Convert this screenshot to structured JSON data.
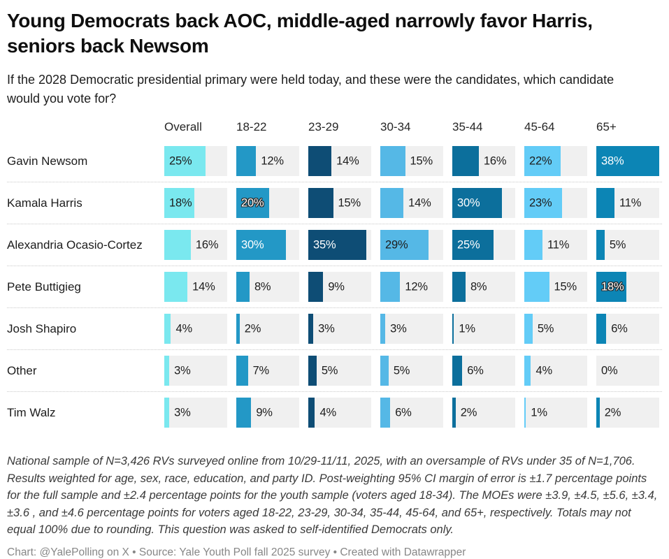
{
  "header": {
    "title": "Young Democrats back AOC, middle-aged narrowly favor Harris, seniors back Newsom",
    "subtitle": "If the 2028 Democratic presidential primary were held today, and these were the candidates, which candidate would you vote for?"
  },
  "chart_data": {
    "type": "bar",
    "title": "Young Democrats back AOC, middle-aged narrowly favor Harris, seniors back Newsom",
    "subtitle": "If the 2028 Democratic presidential primary were held today, and these were the candidates, which candidate would you vote for?",
    "value_suffix": "%",
    "scale_max": 38,
    "grid": false,
    "legend_position": "none",
    "track_color": "#f0f0f0",
    "categories": [
      "Overall",
      "18-22",
      "23-29",
      "30-34",
      "35-44",
      "45-64",
      "65+"
    ],
    "columns": [
      {
        "label": "Overall",
        "color": "#7ae8ef",
        "dark": false
      },
      {
        "label": "18-22",
        "color": "#2398c6",
        "dark": true
      },
      {
        "label": "23-29",
        "color": "#0e4d75",
        "dark": true
      },
      {
        "label": "30-34",
        "color": "#55b8e6",
        "dark": false
      },
      {
        "label": "35-44",
        "color": "#0c6f9c",
        "dark": true
      },
      {
        "label": "45-64",
        "color": "#63ccf7",
        "dark": false
      },
      {
        "label": "65+",
        "color": "#0c85b5",
        "dark": true
      }
    ],
    "series": [
      {
        "name": "Gavin Newsom",
        "values": [
          25,
          12,
          14,
          15,
          16,
          22,
          38
        ]
      },
      {
        "name": "Kamala Harris",
        "values": [
          18,
          20,
          15,
          14,
          30,
          23,
          11
        ]
      },
      {
        "name": "Alexandria Ocasio-Cortez",
        "values": [
          16,
          30,
          35,
          29,
          25,
          11,
          5
        ]
      },
      {
        "name": "Pete Buttigieg",
        "values": [
          14,
          8,
          9,
          12,
          8,
          15,
          18
        ]
      },
      {
        "name": "Josh Shapiro",
        "values": [
          4,
          2,
          3,
          3,
          1,
          5,
          6
        ]
      },
      {
        "name": "Other",
        "values": [
          3,
          7,
          5,
          5,
          6,
          4,
          0
        ]
      },
      {
        "name": "Tim Walz",
        "values": [
          3,
          9,
          4,
          6,
          2,
          1,
          2
        ]
      }
    ]
  },
  "footer": {
    "notes": "National sample of N=3,426 RVs surveyed online from 10/29-11/11, 2025, with an oversample of RVs under 35 of N=1,706. Results weighted for age, sex, race, education, and party ID. Post-weighting 95% CI margin of error is ±1.7 percentage points for the full sample and ±2.4 percentage points for the youth sample (voters aged 18-34). The MOEs were ±3.9, ±4.5, ±5.6, ±3.4, ±3.6 , and ±4.6 percentage points for voters aged 18-22, 23-29, 30-34, 35-44, 45-64, and 65+, respectively. Totals may not equal 100% due to rounding. This question was asked to self-identified Democrats only.",
    "credit": "Chart: @YalePolling on X • Source: Yale Youth Poll fall 2025 survey • Created with Datawrapper"
  }
}
